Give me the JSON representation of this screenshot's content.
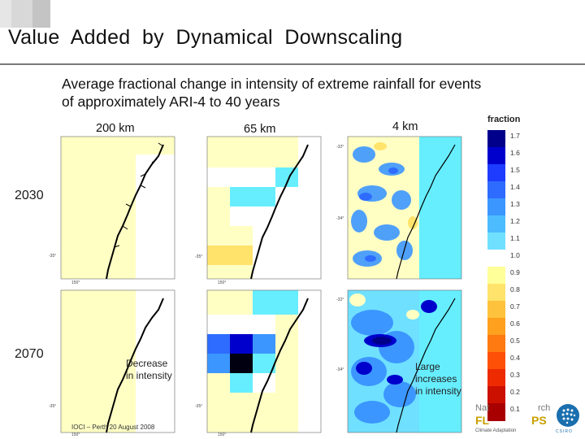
{
  "slide": {
    "title": "Value  Added  by  Dynamical  Downscaling",
    "subtitle": "Average fractional change in intensity of extreme rainfall for events of approximately ARI-4 to 40 years"
  },
  "columns": {
    "c200": "200 km",
    "c65": "65 km",
    "c4": "4 km"
  },
  "rows": {
    "r2030": "2030",
    "r2070": "2070"
  },
  "annotations": {
    "decrease": "Decrease in intensity",
    "increase": "Large increases in intensity"
  },
  "footer": "IOCI – Perth 20 August 2008",
  "legend": {
    "title": "fraction",
    "ticks": [
      "1.7",
      "1.6",
      "1.5",
      "1.4",
      "1.3",
      "1.2",
      "1.1",
      "1.0",
      "0.9",
      "0.8",
      "0.7",
      "0.6",
      "0.5",
      "0.4",
      "0.3",
      "0.2",
      "0.1"
    ],
    "colors": [
      "#00008b",
      "#0000cd",
      "#1e3cff",
      "#2e6cff",
      "#3c96ff",
      "#4cbcff",
      "#6fe0ff",
      "#ffffff",
      "#ffff99",
      "#ffe36b",
      "#ffc23d",
      "#ffa01f",
      "#ff7a10",
      "#ff5008",
      "#ee2a00",
      "#cc1000",
      "#a80000"
    ]
  },
  "logos": {
    "partial_text_1": "Nat",
    "partial_text_2": "rch",
    "partial_text_3": "FL",
    "partial_text_4": "PS",
    "partial_text_5": "Climate Adaptation",
    "csiro": "CSIRO"
  },
  "map_ticks": {
    "lon": "150°",
    "lat_a": "-35°",
    "lat_b": "-34°",
    "lat_c": "-32°"
  }
}
